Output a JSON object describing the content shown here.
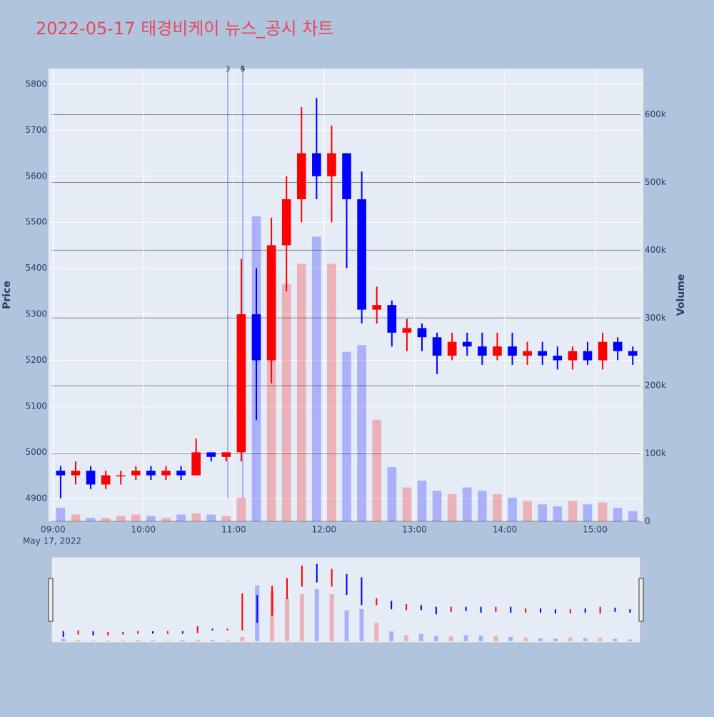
{
  "chart_data": {
    "type": "candlestick",
    "title": "2022-05-17 태경비케이 뉴스_공시 차트",
    "ylabel": "Price",
    "y2label": "Volume",
    "x_date_label": "May 17, 2022",
    "x": [
      "2022-05-17 09:00",
      "2022-05-17 09:10",
      "2022-05-17 09:20",
      "2022-05-17 09:30",
      "2022-05-17 09:40",
      "2022-05-17 09:50",
      "2022-05-17 10:00",
      "2022-05-17 10:10",
      "2022-05-17 10:20",
      "2022-05-17 10:30",
      "2022-05-17 10:40",
      "2022-05-17 10:50",
      "2022-05-17 11:00",
      "2022-05-17 11:10",
      "2022-05-17 11:20",
      "2022-05-17 11:30",
      "2022-05-17 11:40",
      "2022-05-17 11:50",
      "2022-05-17 12:00",
      "2022-05-17 12:10",
      "2022-05-17 12:20",
      "2022-05-17 12:30",
      "2022-05-17 12:40",
      "2022-05-17 12:50",
      "2022-05-17 13:00",
      "2022-05-17 13:10",
      "2022-05-17 13:20",
      "2022-05-17 13:30",
      "2022-05-17 13:40",
      "2022-05-17 13:50",
      "2022-05-17 14:00",
      "2022-05-17 14:10",
      "2022-05-17 14:20",
      "2022-05-17 14:30",
      "2022-05-17 14:40",
      "2022-05-17 14:50",
      "2022-05-17 15:00",
      "2022-05-17 15:10",
      "2022-05-17 15:20"
    ],
    "open": [
      4960,
      4950,
      4960,
      4930,
      4950,
      4950,
      4960,
      4950,
      4960,
      4950,
      5000,
      4990,
      5000,
      5300,
      5200,
      5450,
      5550,
      5650,
      5600,
      5650,
      5550,
      5310,
      5320,
      5260,
      5270,
      5250,
      5210,
      5240,
      5230,
      5210,
      5230,
      5210,
      5220,
      5210,
      5200,
      5220,
      5200,
      5240,
      5220
    ],
    "high": [
      4970,
      4980,
      4970,
      4960,
      4960,
      4970,
      4970,
      4970,
      4970,
      5030,
      5000,
      5000,
      5420,
      5400,
      5510,
      5600,
      5750,
      5770,
      5710,
      5650,
      5610,
      5360,
      5330,
      5290,
      5280,
      5260,
      5260,
      5260,
      5260,
      5260,
      5260,
      5240,
      5240,
      5230,
      5230,
      5240,
      5260,
      5250,
      5230
    ],
    "low": [
      4900,
      4930,
      4920,
      4920,
      4930,
      4940,
      4940,
      4940,
      4940,
      4950,
      4980,
      4980,
      4980,
      5070,
      5150,
      5350,
      5500,
      5550,
      5500,
      5400,
      5280,
      5280,
      5230,
      5220,
      5220,
      5170,
      5200,
      5210,
      5190,
      5200,
      5190,
      5190,
      5190,
      5180,
      5180,
      5190,
      5180,
      5200,
      5190
    ],
    "close": [
      4950,
      4960,
      4930,
      4950,
      4950,
      4960,
      4950,
      4960,
      4950,
      5000,
      4990,
      5000,
      5300,
      5200,
      5450,
      5550,
      5650,
      5600,
      5650,
      5550,
      5310,
      5320,
      5260,
      5270,
      5250,
      5210,
      5240,
      5230,
      5210,
      5230,
      5210,
      5220,
      5210,
      5200,
      5220,
      5200,
      5240,
      5220,
      5210
    ],
    "volume": [
      20000,
      10000,
      5000,
      5000,
      8000,
      10000,
      8000,
      5000,
      10000,
      12000,
      10000,
      8000,
      35000,
      450000,
      400000,
      350000,
      380000,
      420000,
      380000,
      250000,
      260000,
      150000,
      80000,
      50000,
      60000,
      45000,
      40000,
      50000,
      45000,
      40000,
      35000,
      30000,
      25000,
      22000,
      30000,
      25000,
      28000,
      20000,
      15000
    ],
    "increasing_color": "#ff0000",
    "decreasing_color": "#0000ff",
    "news_markers": [
      {
        "label": "3",
        "x": "2022-05-17 10:56"
      },
      {
        "label": "4",
        "x": "2022-05-17 11:06"
      },
      {
        "label": "5",
        "x": "2022-05-17 11:06"
      }
    ],
    "xlim": [
      "2022-05-17 08:57",
      "2022-05-17 15:32"
    ],
    "xticks": [
      {
        "value": "2022-05-17 09:00",
        "label": "09:00"
      },
      {
        "value": "2022-05-17 10:00",
        "label": "10:00"
      },
      {
        "value": "2022-05-17 11:00",
        "label": "11:00"
      },
      {
        "value": "2022-05-17 12:00",
        "label": "12:00"
      },
      {
        "value": "2022-05-17 13:00",
        "label": "13:00"
      },
      {
        "value": "2022-05-17 14:00",
        "label": "14:00"
      },
      {
        "value": "2022-05-17 15:00",
        "label": "15:00"
      }
    ],
    "ylim": [
      4850,
      5834
    ],
    "yticks": [
      4900,
      5000,
      5100,
      5200,
      5300,
      5400,
      5500,
      5600,
      5700,
      5800
    ],
    "y2lim": [
      0,
      668000
    ],
    "y2ticks": [
      0,
      {
        "value": 100000,
        "label": "100k"
      },
      {
        "value": 200000,
        "label": "200k"
      },
      {
        "value": 300000,
        "label": "300k"
      },
      {
        "value": 400000,
        "label": "400k"
      },
      {
        "value": 500000,
        "label": "500k"
      },
      {
        "value": 600000,
        "label": "600k"
      }
    ],
    "grid": true,
    "rangeslider": true
  }
}
